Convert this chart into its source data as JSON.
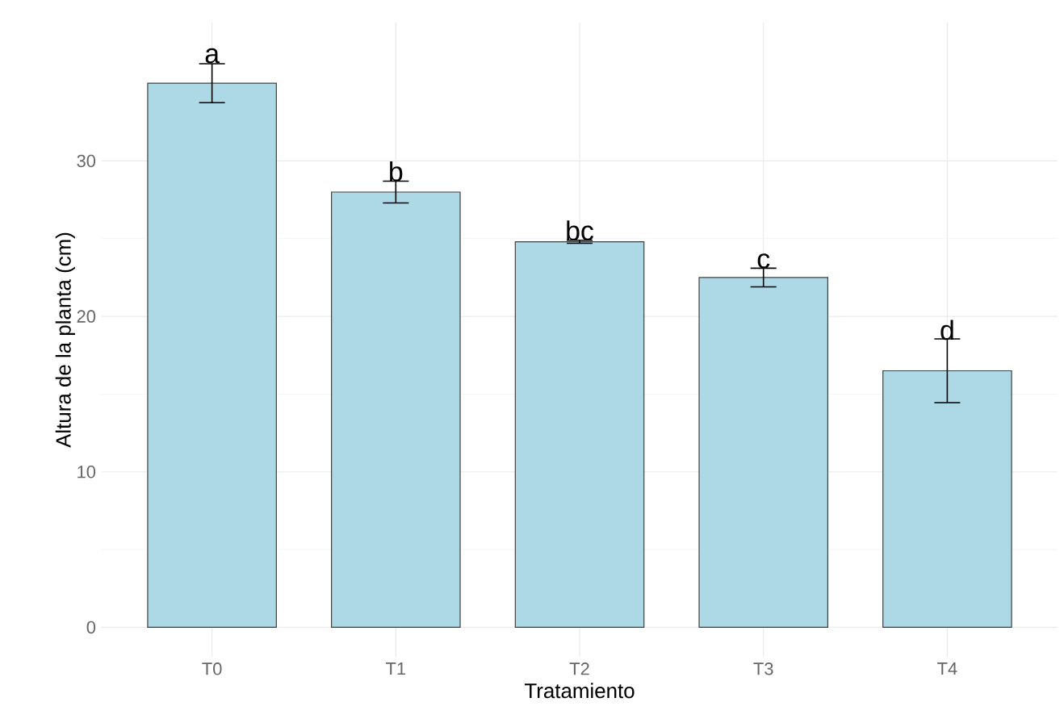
{
  "chart_data": {
    "type": "bar",
    "xlabel": "Tratamiento",
    "ylabel": "Altura de la planta (cm)",
    "categories": [
      "T0",
      "T1",
      "T2",
      "T3",
      "T4"
    ],
    "values": [
      35.0,
      28.0,
      24.8,
      22.5,
      16.5
    ],
    "errors": [
      1.25,
      0.7,
      0.1,
      0.6,
      2.05
    ],
    "color": "#add8e6",
    "ylim": [
      -1.9,
      38.9
    ],
    "yticks": [
      0,
      10,
      20,
      30
    ],
    "grid": true,
    "annotations": [
      {
        "text": "a",
        "x": "T0",
        "y": 36.3
      },
      {
        "text": "b",
        "x": "T1",
        "y": 28.7
      },
      {
        "text": "bc",
        "x": "T2",
        "y": 24.9
      },
      {
        "text": "c",
        "x": "T3",
        "y": 23.1
      },
      {
        "text": "d",
        "x": "T4",
        "y": 18.5
      }
    ]
  }
}
